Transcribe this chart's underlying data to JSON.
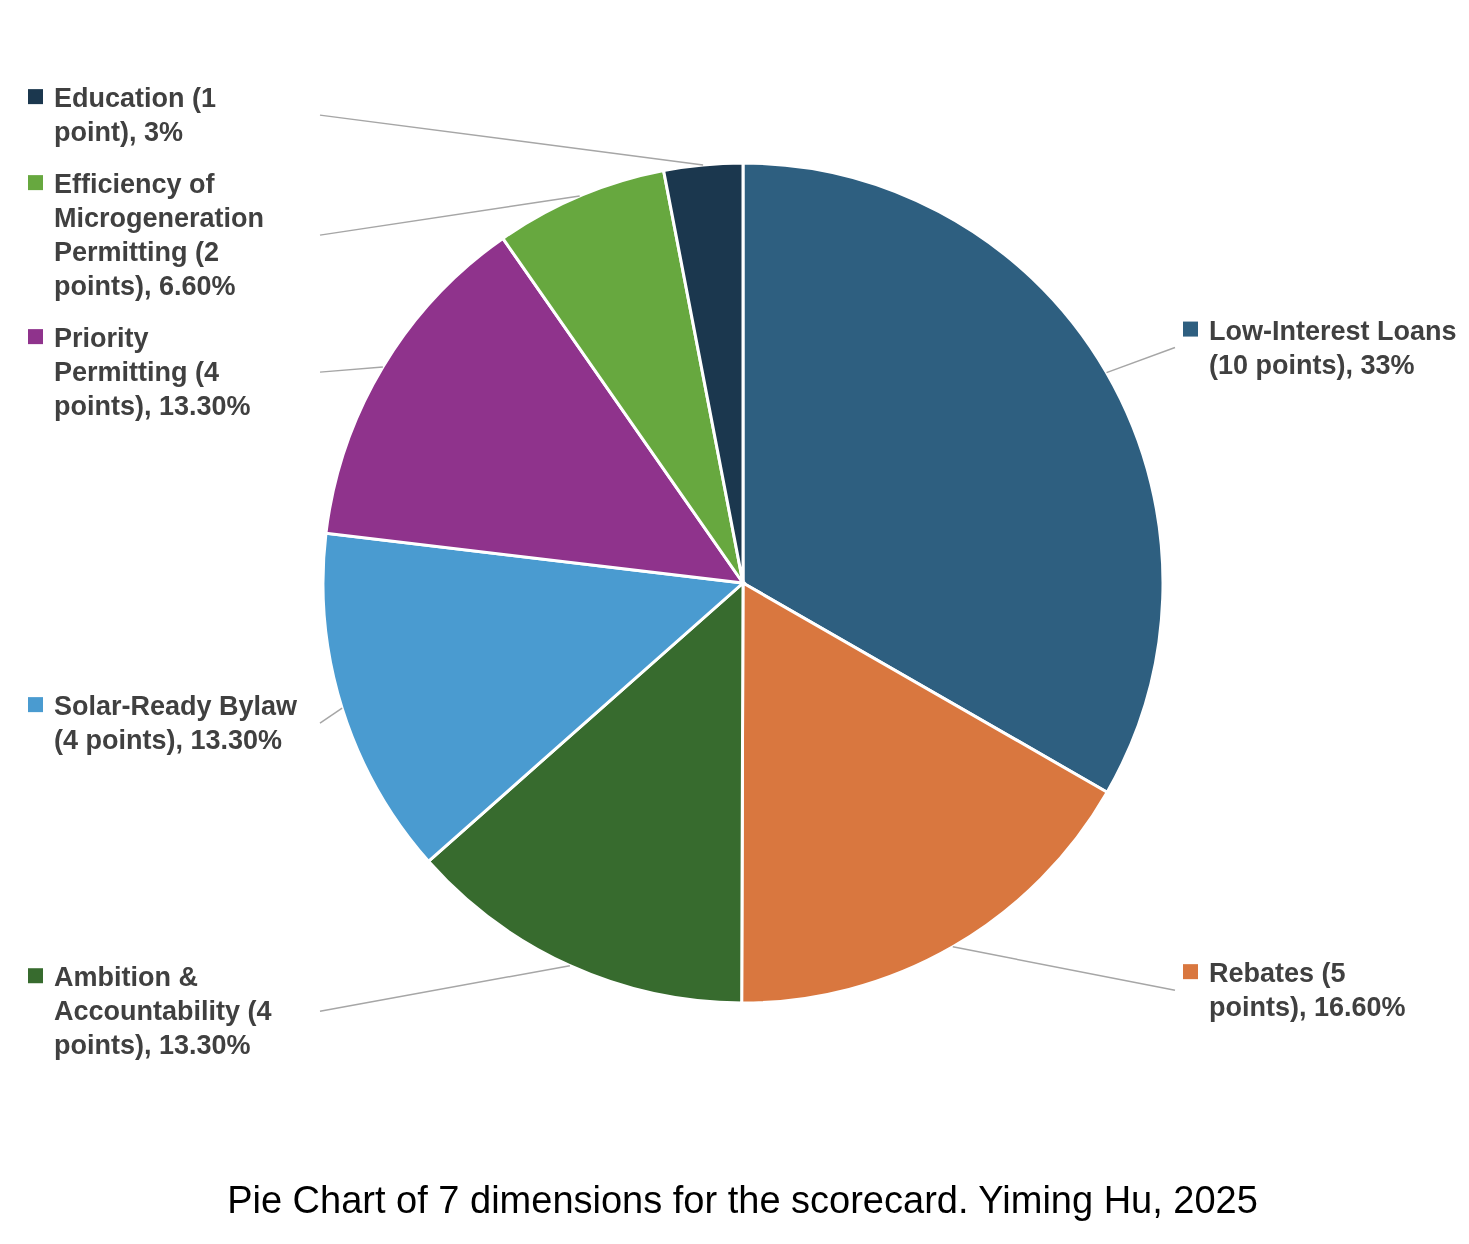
{
  "chart_data": {
    "type": "pie",
    "categories": [
      "Low-Interest Loans (10 points), 33%",
      "Rebates (5 points), 16.60%",
      "Ambition & Accountability (4 points), 13.30%",
      "Solar-Ready Bylaw (4 points), 13.30%",
      "Priority Permitting (4 points), 13.30%",
      "Efficiency of Microgeneration Permitting (2 points), 6.60%",
      "Education (1 point), 3%"
    ],
    "values": [
      33,
      16.6,
      13.3,
      13.3,
      13.3,
      6.6,
      3
    ],
    "legend": "left",
    "colors": [
      "#2e5f80",
      "#d9773f",
      "#376b2e",
      "#4a9bd0",
      "#8f338c",
      "#67a83f",
      "#1b374e"
    ],
    "annotations": [
      "Pie Chart of 7 dimensions for the scorecard. Yiming Hu, 2025"
    ]
  }
}
